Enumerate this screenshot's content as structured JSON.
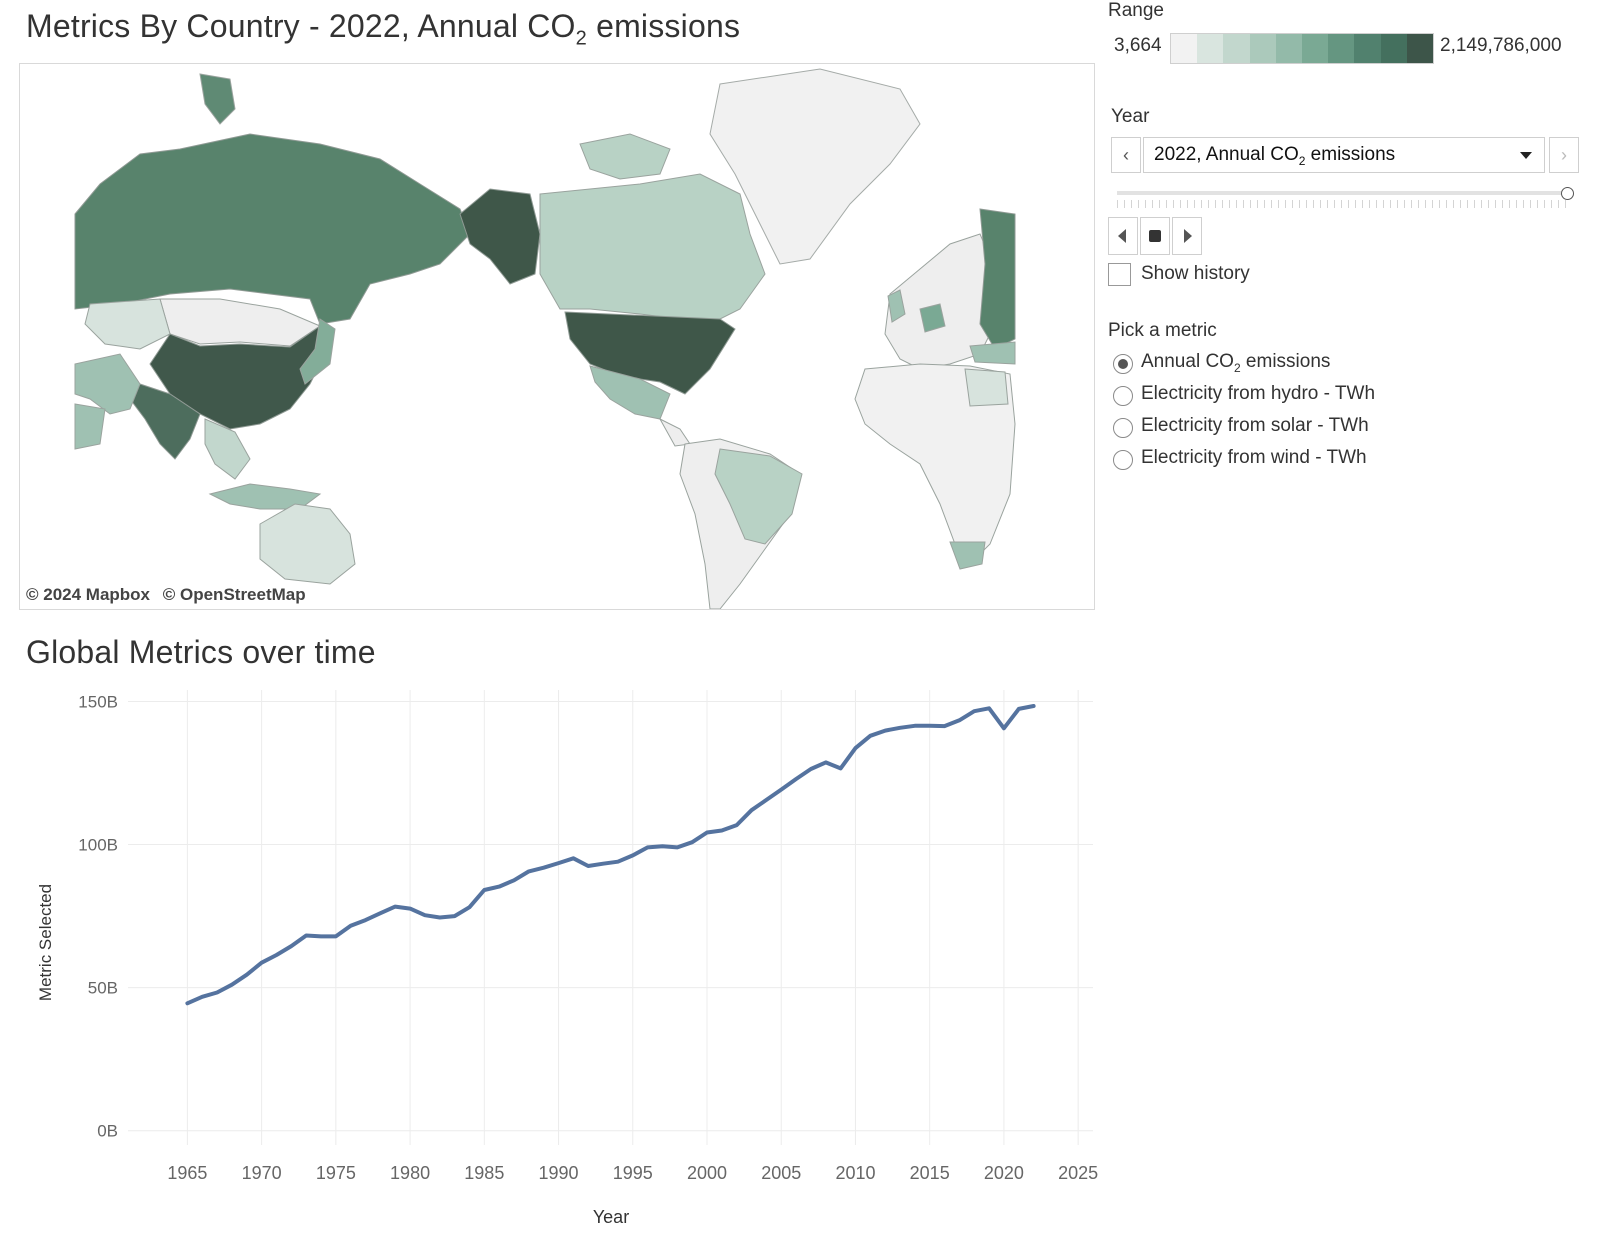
{
  "map_section": {
    "title_prefix": "Metrics By Country - 2022, Annual CO",
    "title_sub": "2",
    "title_suffix": " emissions",
    "attribution": [
      "© 2024 Mapbox",
      "© OpenStreetMap"
    ],
    "colors": {
      "lowest": "#f1f1f1",
      "highest": "#3d5549",
      "land_border": "#9aa39e"
    }
  },
  "legend": {
    "label": "Range",
    "min": "3,664",
    "max": "2,149,786,000",
    "colors": [
      "#f2f2f2",
      "#d9e5df",
      "#c2d7cd",
      "#abc9bb",
      "#93baa9",
      "#7aa994",
      "#659681",
      "#51816e",
      "#44705e",
      "#3d5549"
    ]
  },
  "year_filter": {
    "label": "Year",
    "selected_prefix": "2022, Annual CO",
    "selected_sub": "2",
    "selected_suffix": " emissions",
    "show_history": "Show history"
  },
  "metric_picker": {
    "label": "Pick a metric",
    "options": [
      {
        "prefix": "Annual CO",
        "sub": "2",
        "suffix": " emissions",
        "selected": true
      },
      {
        "prefix": "Electricity from hydro - TWh",
        "sub": "",
        "suffix": "",
        "selected": false
      },
      {
        "prefix": "Electricity from solar - TWh",
        "sub": "",
        "suffix": "",
        "selected": false
      },
      {
        "prefix": "Electricity from wind - TWh",
        "sub": "",
        "suffix": "",
        "selected": false
      }
    ]
  },
  "chart_data": {
    "type": "line",
    "title": "Global Metrics over time",
    "xlabel": "Year",
    "ylabel": "Metric Selected",
    "xlim": [
      1961,
      2026
    ],
    "ylim": [
      -5,
      154
    ],
    "xticks": [
      1965,
      1970,
      1975,
      1980,
      1985,
      1990,
      1995,
      2000,
      2005,
      2010,
      2015,
      2020,
      2025
    ],
    "yticks": [
      0,
      50,
      100,
      150
    ],
    "ytick_labels": [
      "0B",
      "50B",
      "100B",
      "150B"
    ],
    "grid": true,
    "color": "#55739f",
    "x": [
      1965,
      1966,
      1967,
      1968,
      1969,
      1970,
      1971,
      1972,
      1973,
      1974,
      1975,
      1976,
      1977,
      1978,
      1979,
      1980,
      1981,
      1982,
      1983,
      1984,
      1985,
      1986,
      1987,
      1988,
      1989,
      1990,
      1991,
      1992,
      1993,
      1994,
      1995,
      1996,
      1997,
      1998,
      1999,
      2000,
      2001,
      2002,
      2003,
      2004,
      2005,
      2006,
      2007,
      2008,
      2009,
      2010,
      2011,
      2012,
      2013,
      2014,
      2015,
      2016,
      2017,
      2018,
      2019,
      2020,
      2021,
      2022
    ],
    "values": [
      44.5,
      46.8,
      48.3,
      51.0,
      54.5,
      58.7,
      61.4,
      64.5,
      68.2,
      67.9,
      67.9,
      71.6,
      73.6,
      76.0,
      78.3,
      77.6,
      75.3,
      74.5,
      75.0,
      78.1,
      84.1,
      85.3,
      87.5,
      90.6,
      91.9,
      93.5,
      95.2,
      92.5,
      93.3,
      94.0,
      96.2,
      99.0,
      99.4,
      99.0,
      100.8,
      104.2,
      104.9,
      106.8,
      112.0,
      115.6,
      119.2,
      122.9,
      126.4,
      128.7,
      126.6,
      133.7,
      138.0,
      139.8,
      140.8,
      141.5,
      141.5,
      141.4,
      143.4,
      146.6,
      147.6,
      140.6,
      147.4,
      148.4
    ]
  }
}
